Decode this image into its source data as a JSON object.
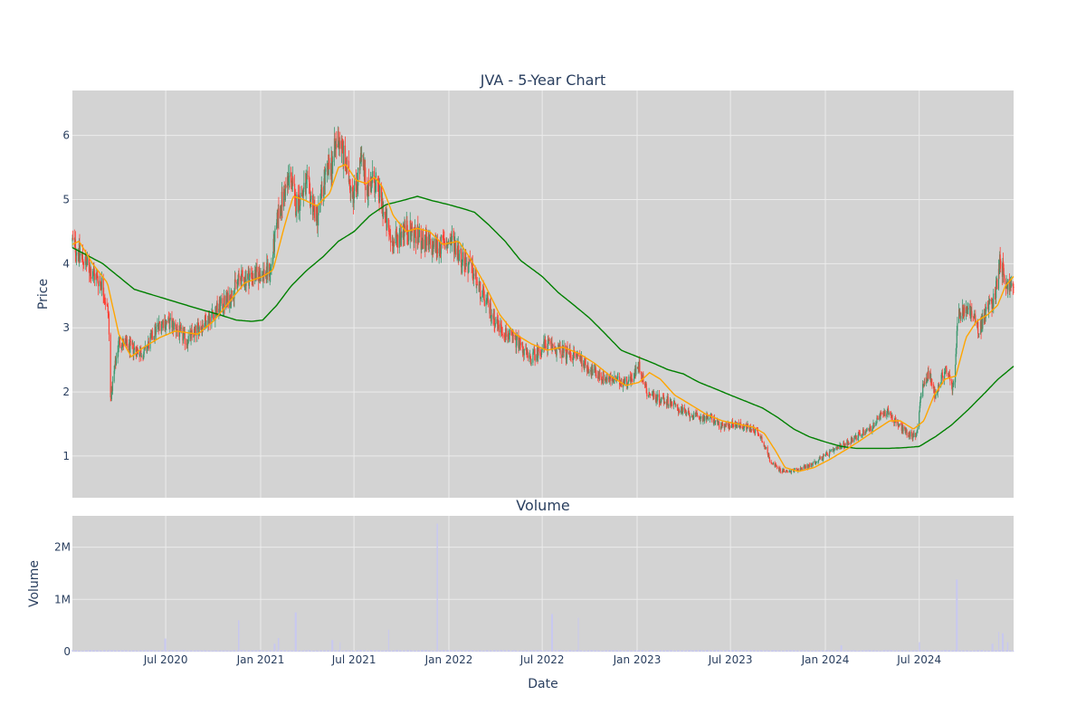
{
  "chart_data": {
    "type": "candlestick",
    "title": "JVA - 5-Year Chart",
    "subplot_title": "Volume",
    "xlabel": "Date",
    "date_range": [
      "2020-01-02",
      "2024-12-31"
    ],
    "x_ticks": [
      {
        "date": "2020-07-01",
        "label": "Jul 2020"
      },
      {
        "date": "2021-01-01",
        "label": "Jan 2021"
      },
      {
        "date": "2021-07-01",
        "label": "Jul 2021"
      },
      {
        "date": "2022-01-01",
        "label": "Jan 2022"
      },
      {
        "date": "2022-07-01",
        "label": "Jul 2022"
      },
      {
        "date": "2023-01-01",
        "label": "Jan 2023"
      },
      {
        "date": "2023-07-01",
        "label": "Jul 2023"
      },
      {
        "date": "2024-01-01",
        "label": "Jan 2024"
      },
      {
        "date": "2024-07-01",
        "label": "Jul 2024"
      }
    ],
    "price_panel": {
      "ylabel": "Price",
      "ylim": [
        0.35,
        6.7
      ],
      "y_ticks": [
        1,
        2,
        3,
        4,
        5,
        6
      ],
      "grid": true
    },
    "volume_panel": {
      "ylabel": "Volume",
      "ylim": [
        0,
        2600000
      ],
      "y_ticks": [
        {
          "value": 0,
          "label": "0"
        },
        {
          "value": 1000000,
          "label": "1M"
        },
        {
          "value": 2000000,
          "label": "2M"
        }
      ],
      "grid": true
    },
    "colors": {
      "up": "#3d9970",
      "down": "#ff4136",
      "ma_short": "#ffa500",
      "ma_long": "#008000",
      "volume": "#c8c8f0",
      "plot_bg": "#d3d3d3",
      "grid": "#ebebeb",
      "text": "#2a3f5f"
    },
    "close_anchors": [
      [
        "2020-01-02",
        4.35
      ],
      [
        "2020-01-20",
        4.1
      ],
      [
        "2020-02-10",
        3.85
      ],
      [
        "2020-02-28",
        3.7
      ],
      [
        "2020-03-12",
        3.2
      ],
      [
        "2020-03-16",
        1.9
      ],
      [
        "2020-03-23",
        2.3
      ],
      [
        "2020-04-01",
        2.8
      ],
      [
        "2020-04-20",
        2.7
      ],
      [
        "2020-05-20",
        2.6
      ],
      [
        "2020-06-10",
        2.95
      ],
      [
        "2020-06-25",
        3.1
      ],
      [
        "2020-07-15",
        3.05
      ],
      [
        "2020-08-10",
        2.8
      ],
      [
        "2020-09-10",
        3.05
      ],
      [
        "2020-10-10",
        3.3
      ],
      [
        "2020-11-01",
        3.45
      ],
      [
        "2020-11-20",
        3.75
      ],
      [
        "2020-12-10",
        3.8
      ],
      [
        "2021-01-05",
        3.85
      ],
      [
        "2021-01-20",
        3.9
      ],
      [
        "2021-02-05",
        4.8
      ],
      [
        "2021-02-20",
        5.2
      ],
      [
        "2021-03-01",
        5.4
      ],
      [
        "2021-03-08",
        4.9
      ],
      [
        "2021-03-20",
        5.05
      ],
      [
        "2021-04-01",
        5.2
      ],
      [
        "2021-04-20",
        4.7
      ],
      [
        "2021-05-05",
        5.3
      ],
      [
        "2021-05-20",
        5.6
      ],
      [
        "2021-06-01",
        6.0
      ],
      [
        "2021-06-15",
        5.5
      ],
      [
        "2021-07-01",
        5.1
      ],
      [
        "2021-07-15",
        5.6
      ],
      [
        "2021-07-25",
        5.2
      ],
      [
        "2021-08-10",
        5.3
      ],
      [
        "2021-08-25",
        4.9
      ],
      [
        "2021-09-05",
        4.5
      ],
      [
        "2021-09-15",
        4.3
      ],
      [
        "2021-10-05",
        4.55
      ],
      [
        "2021-10-20",
        4.5
      ],
      [
        "2021-11-10",
        4.35
      ],
      [
        "2021-12-01",
        4.25
      ],
      [
        "2021-12-20",
        4.3
      ],
      [
        "2022-01-10",
        4.35
      ],
      [
        "2022-01-25",
        4.1
      ],
      [
        "2022-02-15",
        3.9
      ],
      [
        "2022-03-01",
        3.6
      ],
      [
        "2022-03-20",
        3.3
      ],
      [
        "2022-04-10",
        3.0
      ],
      [
        "2022-05-01",
        2.85
      ],
      [
        "2022-05-20",
        2.75
      ],
      [
        "2022-06-05",
        2.5
      ],
      [
        "2022-06-20",
        2.6
      ],
      [
        "2022-07-10",
        2.75
      ],
      [
        "2022-08-01",
        2.65
      ],
      [
        "2022-08-20",
        2.6
      ],
      [
        "2022-09-10",
        2.55
      ],
      [
        "2022-10-01",
        2.35
      ],
      [
        "2022-10-20",
        2.25
      ],
      [
        "2022-11-10",
        2.2
      ],
      [
        "2022-12-01",
        2.15
      ],
      [
        "2022-12-20",
        2.2
      ],
      [
        "2023-01-05",
        2.4
      ],
      [
        "2023-01-20",
        2.0
      ],
      [
        "2023-02-10",
        1.9
      ],
      [
        "2023-03-05",
        1.85
      ],
      [
        "2023-03-20",
        1.75
      ],
      [
        "2023-04-10",
        1.65
      ],
      [
        "2023-05-01",
        1.6
      ],
      [
        "2023-05-25",
        1.6
      ],
      [
        "2023-06-15",
        1.45
      ],
      [
        "2023-07-10",
        1.5
      ],
      [
        "2023-08-01",
        1.45
      ],
      [
        "2023-08-20",
        1.4
      ],
      [
        "2023-09-01",
        1.25
      ],
      [
        "2023-09-15",
        0.95
      ],
      [
        "2023-10-01",
        0.8
      ],
      [
        "2023-10-20",
        0.75
      ],
      [
        "2023-11-10",
        0.8
      ],
      [
        "2023-12-01",
        0.85
      ],
      [
        "2023-12-20",
        0.95
      ],
      [
        "2024-01-10",
        1.05
      ],
      [
        "2024-02-01",
        1.15
      ],
      [
        "2024-02-20",
        1.25
      ],
      [
        "2024-03-10",
        1.35
      ],
      [
        "2024-04-01",
        1.45
      ],
      [
        "2024-04-20",
        1.65
      ],
      [
        "2024-05-01",
        1.7
      ],
      [
        "2024-05-20",
        1.5
      ],
      [
        "2024-06-10",
        1.35
      ],
      [
        "2024-06-25",
        1.3
      ],
      [
        "2024-07-05",
        2.0
      ],
      [
        "2024-07-20",
        2.3
      ],
      [
        "2024-08-01",
        1.95
      ],
      [
        "2024-08-20",
        2.35
      ],
      [
        "2024-09-05",
        2.05
      ],
      [
        "2024-09-15",
        3.2
      ],
      [
        "2024-10-05",
        3.3
      ],
      [
        "2024-10-25",
        2.95
      ],
      [
        "2024-11-10",
        3.3
      ],
      [
        "2024-11-25",
        3.5
      ],
      [
        "2024-12-05",
        4.1
      ],
      [
        "2024-12-15",
        3.7
      ],
      [
        "2024-12-31",
        3.6
      ]
    ],
    "ma_short_anchors": [
      [
        "2020-01-02",
        4.3
      ],
      [
        "2020-01-15",
        4.35
      ],
      [
        "2020-02-10",
        4.0
      ],
      [
        "2020-03-10",
        3.7
      ],
      [
        "2020-04-01",
        2.9
      ],
      [
        "2020-04-25",
        2.55
      ],
      [
        "2020-05-20",
        2.7
      ],
      [
        "2020-06-20",
        2.85
      ],
      [
        "2020-07-20",
        2.95
      ],
      [
        "2020-09-01",
        2.9
      ],
      [
        "2020-10-01",
        3.1
      ],
      [
        "2020-11-01",
        3.4
      ],
      [
        "2020-12-01",
        3.7
      ],
      [
        "2021-01-05",
        3.8
      ],
      [
        "2021-01-25",
        3.9
      ],
      [
        "2021-02-15",
        4.55
      ],
      [
        "2021-03-05",
        5.05
      ],
      [
        "2021-03-25",
        5.0
      ],
      [
        "2021-04-20",
        4.9
      ],
      [
        "2021-05-15",
        5.1
      ],
      [
        "2021-06-01",
        5.5
      ],
      [
        "2021-06-15",
        5.55
      ],
      [
        "2021-07-05",
        5.3
      ],
      [
        "2021-07-25",
        5.25
      ],
      [
        "2021-08-10",
        5.35
      ],
      [
        "2021-08-25",
        5.2
      ],
      [
        "2021-09-15",
        4.75
      ],
      [
        "2021-10-10",
        4.5
      ],
      [
        "2021-11-01",
        4.55
      ],
      [
        "2021-11-25",
        4.5
      ],
      [
        "2021-12-20",
        4.3
      ],
      [
        "2022-01-20",
        4.35
      ],
      [
        "2022-02-10",
        4.1
      ],
      [
        "2022-03-10",
        3.7
      ],
      [
        "2022-04-10",
        3.2
      ],
      [
        "2022-05-10",
        2.9
      ],
      [
        "2022-06-10",
        2.75
      ],
      [
        "2022-07-10",
        2.65
      ],
      [
        "2022-08-10",
        2.7
      ],
      [
        "2022-09-10",
        2.6
      ],
      [
        "2022-10-10",
        2.45
      ],
      [
        "2022-11-10",
        2.25
      ],
      [
        "2022-12-10",
        2.1
      ],
      [
        "2023-01-05",
        2.15
      ],
      [
        "2023-01-25",
        2.3
      ],
      [
        "2023-02-15",
        2.2
      ],
      [
        "2023-03-15",
        1.95
      ],
      [
        "2023-04-15",
        1.8
      ],
      [
        "2023-05-15",
        1.65
      ],
      [
        "2023-06-15",
        1.55
      ],
      [
        "2023-07-15",
        1.5
      ],
      [
        "2023-08-15",
        1.45
      ],
      [
        "2023-09-05",
        1.35
      ],
      [
        "2023-09-25",
        1.1
      ],
      [
        "2023-10-15",
        0.82
      ],
      [
        "2023-11-10",
        0.76
      ],
      [
        "2023-12-10",
        0.82
      ],
      [
        "2024-01-10",
        0.95
      ],
      [
        "2024-02-10",
        1.1
      ],
      [
        "2024-03-10",
        1.25
      ],
      [
        "2024-04-10",
        1.42
      ],
      [
        "2024-05-05",
        1.55
      ],
      [
        "2024-05-25",
        1.55
      ],
      [
        "2024-06-20",
        1.42
      ],
      [
        "2024-07-10",
        1.55
      ],
      [
        "2024-07-30",
        1.95
      ],
      [
        "2024-08-20",
        2.2
      ],
      [
        "2024-09-10",
        2.25
      ],
      [
        "2024-09-30",
        2.85
      ],
      [
        "2024-10-20",
        3.1
      ],
      [
        "2024-11-10",
        3.2
      ],
      [
        "2024-11-30",
        3.35
      ],
      [
        "2024-12-15",
        3.65
      ],
      [
        "2024-12-31",
        3.8
      ]
    ],
    "ma_long_anchors": [
      [
        "2020-01-02",
        4.25
      ],
      [
        "2020-03-01",
        4.0
      ],
      [
        "2020-05-01",
        3.6
      ],
      [
        "2020-07-01",
        3.45
      ],
      [
        "2020-09-01",
        3.3
      ],
      [
        "2020-10-15",
        3.2
      ],
      [
        "2020-11-15",
        3.12
      ],
      [
        "2020-12-15",
        3.1
      ],
      [
        "2021-01-05",
        3.12
      ],
      [
        "2021-02-01",
        3.35
      ],
      [
        "2021-03-01",
        3.65
      ],
      [
        "2021-04-01",
        3.9
      ],
      [
        "2021-05-01",
        4.1
      ],
      [
        "2021-06-01",
        4.35
      ],
      [
        "2021-07-01",
        4.5
      ],
      [
        "2021-08-01",
        4.75
      ],
      [
        "2021-09-01",
        4.92
      ],
      [
        "2021-10-01",
        4.98
      ],
      [
        "2021-11-01",
        5.05
      ],
      [
        "2021-12-01",
        4.98
      ],
      [
        "2022-01-01",
        4.92
      ],
      [
        "2022-02-01",
        4.85
      ],
      [
        "2022-02-20",
        4.8
      ],
      [
        "2022-03-20",
        4.6
      ],
      [
        "2022-04-20",
        4.35
      ],
      [
        "2022-05-20",
        4.05
      ],
      [
        "2022-07-01",
        3.8
      ],
      [
        "2022-08-01",
        3.55
      ],
      [
        "2022-09-01",
        3.35
      ],
      [
        "2022-10-01",
        3.15
      ],
      [
        "2022-11-01",
        2.9
      ],
      [
        "2022-12-01",
        2.65
      ],
      [
        "2023-01-01",
        2.55
      ],
      [
        "2023-02-01",
        2.45
      ],
      [
        "2023-03-01",
        2.35
      ],
      [
        "2023-04-01",
        2.28
      ],
      [
        "2023-05-01",
        2.15
      ],
      [
        "2023-06-01",
        2.05
      ],
      [
        "2023-07-01",
        1.95
      ],
      [
        "2023-08-01",
        1.85
      ],
      [
        "2023-09-01",
        1.75
      ],
      [
        "2023-10-01",
        1.6
      ],
      [
        "2023-11-01",
        1.42
      ],
      [
        "2023-12-01",
        1.3
      ],
      [
        "2024-01-01",
        1.22
      ],
      [
        "2024-02-01",
        1.15
      ],
      [
        "2024-03-01",
        1.12
      ],
      [
        "2024-04-01",
        1.12
      ],
      [
        "2024-05-01",
        1.12
      ],
      [
        "2024-06-01",
        1.13
      ],
      [
        "2024-07-01",
        1.15
      ],
      [
        "2024-08-01",
        1.3
      ],
      [
        "2024-09-01",
        1.48
      ],
      [
        "2024-10-01",
        1.7
      ],
      [
        "2024-11-01",
        1.95
      ],
      [
        "2024-12-01",
        2.2
      ],
      [
        "2024-12-31",
        2.4
      ]
    ],
    "volume_base": 22000,
    "volume_spikes": [
      [
        "2020-06-30",
        250000
      ],
      [
        "2020-11-20",
        600000
      ],
      [
        "2021-01-28",
        150000
      ],
      [
        "2021-02-05",
        260000
      ],
      [
        "2021-03-10",
        750000
      ],
      [
        "2021-05-20",
        220000
      ],
      [
        "2021-06-05",
        180000
      ],
      [
        "2021-09-05",
        420000
      ],
      [
        "2021-12-10",
        2450000
      ],
      [
        "2022-07-20",
        720000
      ],
      [
        "2022-09-10",
        650000
      ],
      [
        "2024-02-01",
        120000
      ],
      [
        "2024-07-01",
        180000
      ],
      [
        "2024-09-12",
        1380000
      ],
      [
        "2024-11-20",
        150000
      ],
      [
        "2024-12-01",
        380000
      ],
      [
        "2024-12-10",
        350000
      ],
      [
        "2024-12-20",
        180000
      ]
    ]
  }
}
